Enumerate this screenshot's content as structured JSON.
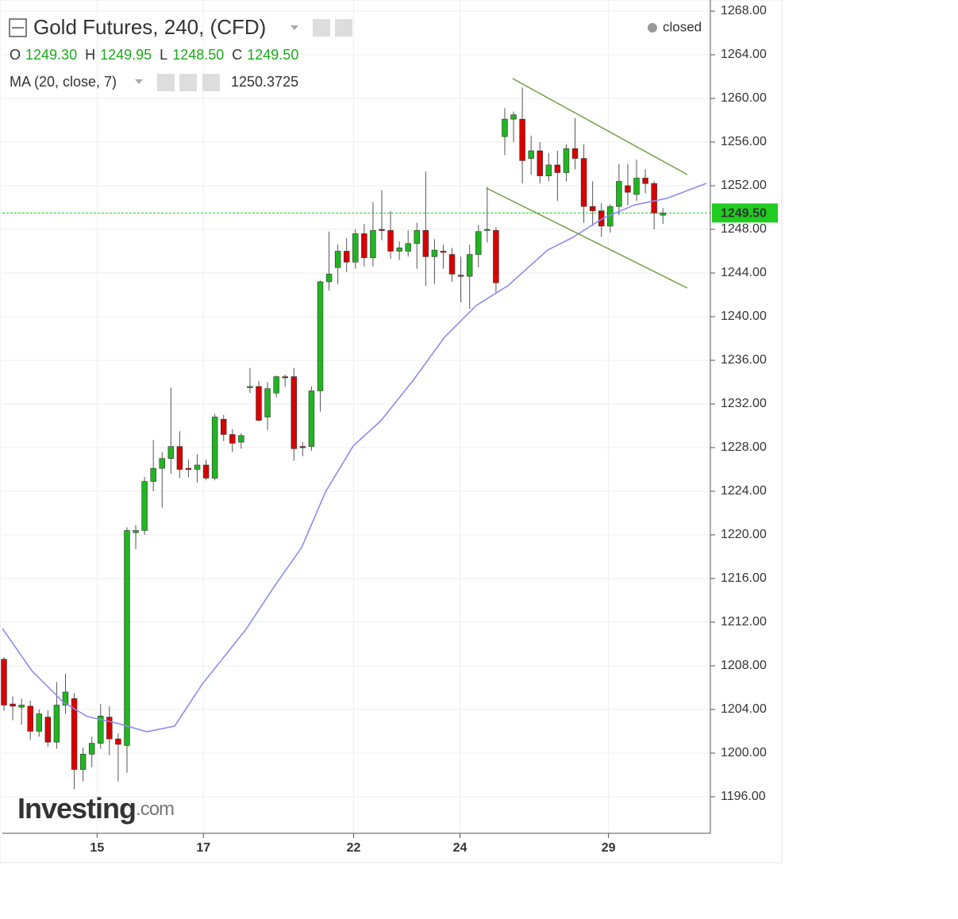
{
  "chart_data": {
    "type": "candlestick",
    "header": {
      "title": "Gold Futures, 240, (CFD)",
      "status": "closed",
      "ohlc": [
        {
          "label": "O",
          "value": "1249.30"
        },
        {
          "label": "H",
          "value": "1249.95"
        },
        {
          "label": "L",
          "value": "1248.50"
        },
        {
          "label": "C",
          "value": "1249.50"
        }
      ],
      "indicator": "MA (20, close, 7)",
      "indicator_value": "1250.3725"
    },
    "watermark": [
      "Investing",
      ".com"
    ],
    "up_color": "#21b521",
    "down_color": "#d90000",
    "x": [
      0,
      1,
      2,
      3,
      4,
      5,
      6,
      7,
      8,
      9,
      10,
      11,
      12,
      13,
      14,
      15,
      16,
      17,
      18,
      19,
      20,
      21,
      22,
      23,
      24,
      25,
      26,
      27,
      28,
      29,
      30,
      31,
      32,
      33,
      34,
      35,
      36,
      37,
      38,
      39,
      40,
      41,
      42,
      43,
      44,
      45,
      46,
      47,
      48,
      49,
      50,
      51,
      52,
      53,
      54,
      55,
      56,
      57,
      58,
      59,
      60,
      61,
      62,
      63,
      64,
      65,
      66,
      67,
      68,
      69,
      70,
      71,
      72,
      73,
      74,
      75
    ],
    "open": [
      1208.6,
      1204.5,
      1204.2,
      1204.3,
      1202.0,
      1203.3,
      1201.0,
      1204.4,
      1205.0,
      1198.5,
      1199.9,
      1200.9,
      1203.3,
      1201.3,
      1200.7,
      1220.2,
      1220.4,
      1224.9,
      1226.1,
      1227.0,
      1228.1,
      1226.1,
      1226.0,
      1226.4,
      1225.2,
      1230.6,
      1229.2,
      1228.5,
      1233.5,
      1233.6,
      1230.8,
      1233.0,
      1234.5,
      1234.5,
      1228.1,
      1228.1,
      1233.2,
      1243.2,
      1244.5,
      1246.0,
      1245.0,
      1247.6,
      1245.4,
      1248.0,
      1247.9,
      1246.0,
      1246.0,
      1246.7,
      1247.9,
      1245.5,
      1246.0,
      1245.7,
      1243.8,
      1243.7,
      1245.7,
      1247.9,
      1247.9,
      1256.5,
      1258.1,
      1258.1,
      1254.5,
      1255.2,
      1252.9,
      1253.9,
      1253.2,
      1255.4,
      1254.5,
      1250.1,
      1249.7,
      1248.3,
      1250.1,
      1252.0,
      1251.2,
      1252.7,
      1252.2,
      1249.3
    ],
    "high": [
      1208.8,
      1205.2,
      1205.0,
      1204.8,
      1204.0,
      1203.9,
      1206.5,
      1207.3,
      1205.5,
      1200.5,
      1201.5,
      1204.5,
      1204.3,
      1201.8,
      1220.7,
      1220.9,
      1225.3,
      1228.7,
      1227.6,
      1233.5,
      1229.5,
      1226.9,
      1227.4,
      1226.9,
      1231.1,
      1231.0,
      1229.7,
      1229.3,
      1235.3,
      1234.1,
      1234.0,
      1234.6,
      1234.7,
      1235.3,
      1228.5,
      1233.6,
      1243.3,
      1247.8,
      1246.6,
      1247.2,
      1248.0,
      1248.5,
      1250.5,
      1251.6,
      1249.7,
      1246.9,
      1247.9,
      1248.6,
      1253.3,
      1247.1,
      1246.6,
      1246.3,
      1245.5,
      1246.6,
      1248.4,
      1251.9,
      1248.2,
      1259.1,
      1258.8,
      1261.0,
      1256.6,
      1256.0,
      1255.0,
      1255.2,
      1255.8,
      1258.2,
      1255.8,
      1252.4,
      1250.4,
      1250.3,
      1254.0,
      1254.0,
      1254.4,
      1253.5,
      1252.4,
      1249.95
    ],
    "low": [
      1203.9,
      1203.0,
      1202.6,
      1201.2,
      1201.5,
      1200.6,
      1200.4,
      1203.6,
      1196.7,
      1197.4,
      1198.7,
      1200.4,
      1199.8,
      1197.4,
      1198.2,
      1218.7,
      1220.0,
      1224.0,
      1222.5,
      1225.6,
      1225.2,
      1225.3,
      1224.8,
      1225.0,
      1225.0,
      1228.6,
      1227.6,
      1227.9,
      1233.0,
      1230.4,
      1229.6,
      1232.6,
      1233.6,
      1226.8,
      1227.2,
      1227.7,
      1231.3,
      1242.4,
      1243.0,
      1244.1,
      1244.4,
      1244.6,
      1244.6,
      1247.0,
      1245.3,
      1245.2,
      1245.5,
      1244.4,
      1242.8,
      1243.0,
      1244.4,
      1243.2,
      1241.3,
      1240.7,
      1244.5,
      1246.8,
      1242.2,
      1254.8,
      1256.0,
      1252.2,
      1253.0,
      1252.2,
      1252.4,
      1250.6,
      1252.4,
      1253.5,
      1248.6,
      1248.3,
      1247.3,
      1247.7,
      1249.3,
      1250.2,
      1250.6,
      1251.3,
      1248.0,
      1248.5
    ],
    "close": [
      1204.4,
      1204.3,
      1204.4,
      1202.0,
      1203.6,
      1201.0,
      1204.4,
      1205.6,
      1198.5,
      1199.9,
      1200.9,
      1203.4,
      1201.3,
      1200.8,
      1220.4,
      1220.4,
      1224.9,
      1226.1,
      1227.0,
      1228.1,
      1226.0,
      1226.0,
      1226.4,
      1225.2,
      1230.8,
      1229.2,
      1228.4,
      1229.1,
      1233.6,
      1230.5,
      1233.4,
      1234.5,
      1234.4,
      1227.9,
      1228.0,
      1233.2,
      1243.2,
      1243.9,
      1246.0,
      1245.0,
      1247.6,
      1245.4,
      1247.9,
      1247.9,
      1246.0,
      1246.3,
      1246.7,
      1247.9,
      1245.5,
      1246.1,
      1245.9,
      1243.9,
      1243.7,
      1245.7,
      1247.8,
      1248.0,
      1243.1,
      1258.1,
      1258.5,
      1254.3,
      1255.2,
      1252.9,
      1253.9,
      1253.2,
      1255.4,
      1254.5,
      1250.1,
      1249.7,
      1248.3,
      1250.1,
      1252.4,
      1251.4,
      1252.7,
      1252.2,
      1249.5,
      1249.5
    ],
    "ma": {
      "name": "MA (20, close, 7)",
      "color": "#8c8cf0",
      "x": [
        -0.18,
        3.16,
        6.78,
        9.49,
        13.1,
        16.26,
        19.42,
        22.58,
        27.55,
        30.71,
        33.88,
        36.59,
        39.75,
        42.91,
        46.52,
        50.14,
        53.75,
        57.36,
        61.88,
        64.59,
        68.2,
        71.82,
        75.43,
        79.95
      ],
      "values": [
        1211.42,
        1207.56,
        1204.65,
        1203.35,
        1202.69,
        1201.96,
        1202.47,
        1206.33,
        1211.35,
        1215.2,
        1218.84,
        1223.93,
        1228.15,
        1230.47,
        1234.11,
        1238.11,
        1241.02,
        1242.84,
        1246.11,
        1247.2,
        1249.02,
        1250.25,
        1250.84,
        1252.22
      ]
    },
    "trendlines": [
      {
        "color": "#6e9a3c",
        "x": [
          57.9,
          77.78
        ],
        "values": [
          1261.82,
          1253.02
        ]
      },
      {
        "color": "#6e9a3c",
        "x": [
          54.92,
          77.78
        ],
        "values": [
          1251.78,
          1242.62
        ]
      }
    ],
    "price_line": {
      "value": 1249.5,
      "label": "1249.50",
      "color": "#1fcc1f"
    },
    "xlim": [
      -0.18,
      80.4
    ],
    "xticks": [
      {
        "value": 10.6,
        "label": "15"
      },
      {
        "value": 22.7,
        "label": "17"
      },
      {
        "value": 39.8,
        "label": "22"
      },
      {
        "value": 51.9,
        "label": "24"
      },
      {
        "value": 68.8,
        "label": "29"
      }
    ],
    "ylim": [
      1192.65,
      1269.02
    ],
    "yticks": [
      {
        "value": 1196,
        "label": "1196.00"
      },
      {
        "value": 1200,
        "label": "1200.00"
      },
      {
        "value": 1204,
        "label": "1204.00"
      },
      {
        "value": 1208,
        "label": "1208.00"
      },
      {
        "value": 1212,
        "label": "1212.00"
      },
      {
        "value": 1216,
        "label": "1216.00"
      },
      {
        "value": 1220,
        "label": "1220.00"
      },
      {
        "value": 1224,
        "label": "1224.00"
      },
      {
        "value": 1228,
        "label": "1228.00"
      },
      {
        "value": 1232,
        "label": "1232.00"
      },
      {
        "value": 1236,
        "label": "1236.00"
      },
      {
        "value": 1240,
        "label": "1240.00"
      },
      {
        "value": 1244,
        "label": "1244.00"
      },
      {
        "value": 1248,
        "label": "1248.00"
      },
      {
        "value": 1252,
        "label": "1252.00"
      },
      {
        "value": 1256,
        "label": "1256.00"
      },
      {
        "value": 1260,
        "label": "1260.00"
      },
      {
        "value": 1264,
        "label": "1264.00"
      },
      {
        "value": 1268,
        "label": "1268.00"
      }
    ],
    "grid": true
  }
}
